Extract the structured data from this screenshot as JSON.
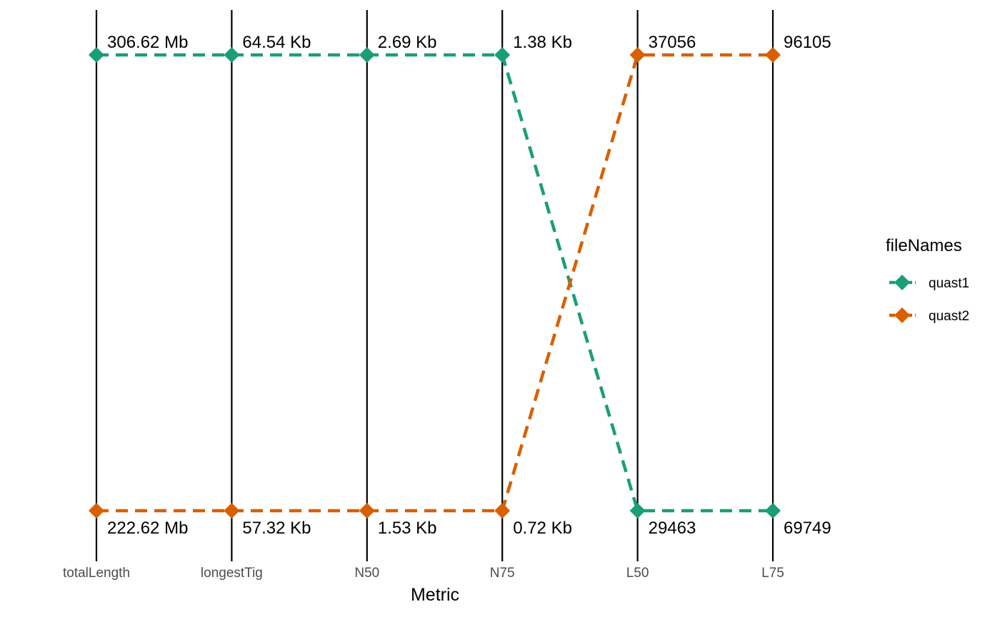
{
  "chart_data": {
    "type": "line",
    "subtype": "parallel-coordinates",
    "title": "",
    "xlabel": "Metric",
    "ylabel": "",
    "categories": [
      "totalLength",
      "longestTig",
      "N50",
      "N75",
      "L50",
      "L75"
    ],
    "series": [
      {
        "name": "quast1",
        "color": "#1b9e77",
        "values": [
          306.62,
          64.54,
          2.69,
          1.38,
          29463,
          69749
        ],
        "labels": [
          "306.62 Mb",
          "64.54 Kb",
          "2.69 Kb",
          "1.38 Kb",
          "29463",
          "69749"
        ],
        "is_max": [
          true,
          true,
          true,
          true,
          false,
          false
        ]
      },
      {
        "name": "quast2",
        "color": "#d95f02",
        "values": [
          222.62,
          57.32,
          1.53,
          0.72,
          37056,
          96105
        ],
        "labels": [
          "222.62 Mb",
          "57.32 Kb",
          "1.53 Kb",
          "0.72 Kb",
          "37056",
          "96105"
        ],
        "is_max": [
          false,
          false,
          false,
          false,
          true,
          true
        ]
      }
    ],
    "line_style": "dashed",
    "marker": "diamond",
    "grid": false,
    "legend": {
      "title": "fileNames",
      "position": "right"
    }
  }
}
